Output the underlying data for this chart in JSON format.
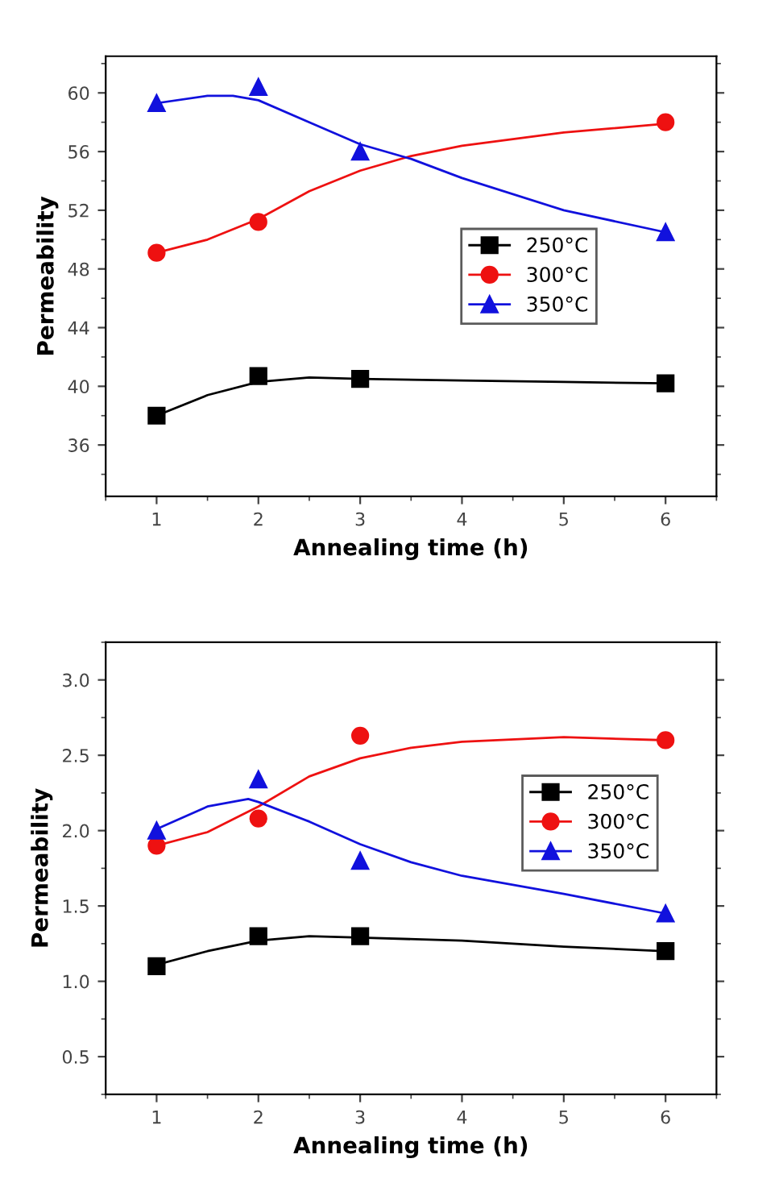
{
  "chart_data": [
    {
      "type": "scatter",
      "xlabel": "Annealing time (h)",
      "ylabel": "Permeability",
      "x": [
        1,
        2,
        3,
        6
      ],
      "xlim": [
        0.5,
        6.5
      ],
      "xticks": [
        1,
        2,
        3,
        4,
        5,
        6
      ],
      "ylim": [
        32.5,
        62.5
      ],
      "yticks": [
        36,
        40,
        44,
        48,
        52,
        56,
        60
      ],
      "grid": false,
      "legend": "right",
      "line_style": "solid",
      "series": [
        {
          "type": "line",
          "color": "#000000",
          "x": [
            1,
            1.5,
            2,
            2.5,
            3,
            4,
            5,
            6
          ],
          "values": [
            38.0,
            39.4,
            40.3,
            40.6,
            40.5,
            40.4,
            40.3,
            40.2
          ]
        },
        {
          "type": "line",
          "color": "#ee1111",
          "x": [
            1,
            1.5,
            2,
            2.5,
            3,
            3.5,
            4,
            5,
            6
          ],
          "values": [
            49.1,
            50.0,
            51.4,
            53.3,
            54.7,
            55.7,
            56.4,
            57.3,
            57.9
          ]
        },
        {
          "type": "line",
          "color": "#1111dd",
          "x": [
            1,
            1.5,
            1.75,
            2,
            2.5,
            3,
            3.5,
            4,
            5,
            6
          ],
          "values": [
            59.3,
            59.8,
            59.8,
            59.5,
            58.0,
            56.5,
            55.5,
            54.2,
            52.0,
            50.5
          ]
        },
        {
          "name": "250°C",
          "color": "#000000",
          "marker": "square",
          "values": [
            38.0,
            40.7,
            40.5,
            40.2
          ]
        },
        {
          "name": "300°C",
          "color": "#ee1111",
          "marker": "circle",
          "values": [
            49.1,
            51.2,
            null,
            58.0
          ]
        },
        {
          "name": "350°C",
          "color": "#1111dd",
          "marker": "triangle",
          "values": [
            59.3,
            60.4,
            56.0,
            50.5
          ]
        }
      ]
    },
    {
      "type": "scatter",
      "xlabel": "Annealing time (h)",
      "ylabel": "Permeability",
      "x": [
        1,
        2,
        3,
        6
      ],
      "xlim": [
        0.5,
        6.5
      ],
      "xticks": [
        1,
        2,
        3,
        4,
        5,
        6
      ],
      "ylim": [
        0.25,
        3.25
      ],
      "yticks": [
        {
          "value": 0.5,
          "label": "0.5"
        },
        {
          "value": 1.0,
          "label": "1.0"
        },
        {
          "value": 1.5,
          "label": "1.5"
        },
        {
          "value": 2.0,
          "label": "2.0"
        },
        {
          "value": 2.5,
          "label": "2.5"
        },
        {
          "value": 3.0,
          "label": "3.0"
        }
      ],
      "grid": false,
      "legend": "right",
      "line_style": "solid",
      "series": [
        {
          "type": "line",
          "color": "#000000",
          "x": [
            1,
            1.5,
            2,
            2.5,
            3,
            4,
            5,
            6
          ],
          "values": [
            1.11,
            1.2,
            1.27,
            1.3,
            1.29,
            1.27,
            1.23,
            1.2
          ]
        },
        {
          "type": "line",
          "color": "#ee1111",
          "x": [
            1,
            1.5,
            2,
            2.5,
            3,
            3.5,
            4,
            5,
            6
          ],
          "values": [
            1.9,
            1.99,
            2.16,
            2.36,
            2.48,
            2.55,
            2.59,
            2.62,
            2.6
          ]
        },
        {
          "type": "line",
          "color": "#1111dd",
          "x": [
            1,
            1.5,
            1.9,
            2,
            2.5,
            3,
            3.5,
            4,
            5,
            6
          ],
          "values": [
            2.01,
            2.16,
            2.21,
            2.19,
            2.06,
            1.91,
            1.79,
            1.7,
            1.58,
            1.45
          ]
        },
        {
          "name": "250°C",
          "color": "#000000",
          "marker": "square",
          "values": [
            1.1,
            1.3,
            1.3,
            1.2
          ]
        },
        {
          "name": "300°C",
          "color": "#ee1111",
          "marker": "circle",
          "values": [
            1.9,
            2.08,
            2.63,
            2.6
          ]
        },
        {
          "name": "350°C",
          "color": "#1111dd",
          "marker": "triangle",
          "values": [
            2.0,
            2.34,
            1.8,
            1.45
          ]
        }
      ]
    }
  ]
}
